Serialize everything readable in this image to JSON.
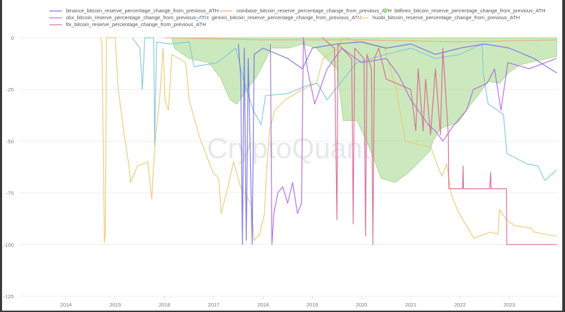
{
  "chart_data": {
    "type": "line",
    "title": "",
    "xlabel": "",
    "ylabel": "",
    "watermark": "CryptoQuant",
    "xlim": [
      2013.07,
      2024.0
    ],
    "ylim": [
      -125,
      0
    ],
    "x_ticks": [
      "2014",
      "2015",
      "2016",
      "2017",
      "2018",
      "2019",
      "2020",
      "2021",
      "2022",
      "2023"
    ],
    "y_ticks": [
      {
        "v": 0,
        "label": "0"
      },
      {
        "v": -25,
        "label": "-25"
      },
      {
        "v": -50,
        "label": "-50"
      },
      {
        "v": -75,
        "label": "-75"
      },
      {
        "v": -100,
        "label": "-100"
      },
      {
        "v": -125,
        "label": "-125"
      }
    ],
    "grid": true,
    "legend_position": "top",
    "series": [
      {
        "name": "bitfinex_bitcoin_reserve_percentage_change_from_previous_ATH",
        "color": "#9ad47e",
        "style": "area",
        "points": [
          [
            2016.15,
            0
          ],
          [
            2016.2,
            -5
          ],
          [
            2016.5,
            -10
          ],
          [
            2016.9,
            -12
          ],
          [
            2017.13,
            -19
          ],
          [
            2017.33,
            -30
          ],
          [
            2017.47,
            -32
          ],
          [
            2017.68,
            -25
          ],
          [
            2017.89,
            -18
          ],
          [
            2018.17,
            -5
          ],
          [
            2018.52,
            -5
          ],
          [
            2018.8,
            -3
          ],
          [
            2019.08,
            -5
          ],
          [
            2019.36,
            -12
          ],
          [
            2019.5,
            -15
          ],
          [
            2019.63,
            -40
          ],
          [
            2019.91,
            -40
          ],
          [
            2020.19,
            -55
          ],
          [
            2020.4,
            -68
          ],
          [
            2020.68,
            -70
          ],
          [
            2020.96,
            -65
          ],
          [
            2021.17,
            -60
          ],
          [
            2021.38,
            -55
          ],
          [
            2021.45,
            -50
          ],
          [
            2021.59,
            -44
          ],
          [
            2021.96,
            -41
          ],
          [
            2022.19,
            -33
          ],
          [
            2022.42,
            -26
          ],
          [
            2022.56,
            -21
          ],
          [
            2022.8,
            -22
          ],
          [
            2022.98,
            -17
          ],
          [
            2023.22,
            -13
          ],
          [
            2023.58,
            -11
          ],
          [
            2023.96,
            -9
          ]
        ]
      },
      {
        "name": "huobi_bitcoin_reserve_percentage_change_from_previous_ATH",
        "color": "#ecc66a",
        "points": [
          [
            2014.7,
            0
          ],
          [
            2014.73,
            -2
          ],
          [
            2014.76,
            -60
          ],
          [
            2014.78,
            -99
          ],
          [
            2014.8,
            -95
          ],
          [
            2014.82,
            0
          ],
          [
            2015.0,
            0
          ],
          [
            2015.06,
            -25
          ],
          [
            2015.17,
            -45
          ],
          [
            2015.28,
            -62
          ],
          [
            2015.31,
            -70
          ],
          [
            2015.45,
            -62
          ],
          [
            2015.66,
            -60
          ],
          [
            2015.74,
            -78
          ],
          [
            2015.81,
            -50
          ],
          [
            2015.9,
            -30
          ],
          [
            2015.97,
            -5
          ],
          [
            2016.01,
            -30
          ],
          [
            2016.08,
            -35
          ],
          [
            2016.15,
            -8
          ],
          [
            2016.43,
            -12
          ],
          [
            2016.5,
            -30
          ],
          [
            2016.71,
            -48
          ],
          [
            2016.98,
            -65
          ],
          [
            2017.1,
            -68
          ],
          [
            2017.15,
            -85
          ],
          [
            2017.26,
            -75
          ],
          [
            2017.4,
            -60
          ],
          [
            2017.54,
            -72
          ],
          [
            2017.75,
            -80
          ],
          [
            2017.82,
            -98
          ],
          [
            2017.93,
            -95
          ],
          [
            2018.03,
            -85
          ],
          [
            2018.07,
            -65
          ],
          [
            2018.13,
            -45
          ],
          [
            2018.24,
            -35
          ],
          [
            2018.45,
            -30
          ],
          [
            2018.8,
            -25
          ],
          [
            2019.08,
            -22
          ],
          [
            2019.22,
            -10
          ],
          [
            2019.5,
            -5
          ],
          [
            2019.63,
            0
          ],
          [
            2020.47,
            -5
          ],
          [
            2020.71,
            -26
          ],
          [
            2020.89,
            -50
          ],
          [
            2021.41,
            -53
          ],
          [
            2021.45,
            -56
          ],
          [
            2021.63,
            -67
          ],
          [
            2021.73,
            -61
          ],
          [
            2021.82,
            -76
          ],
          [
            2021.96,
            -84
          ],
          [
            2022.28,
            -97
          ],
          [
            2022.61,
            -94
          ],
          [
            2022.77,
            -95
          ],
          [
            2022.8,
            -83
          ],
          [
            2022.94,
            -88
          ],
          [
            2023.12,
            -91
          ],
          [
            2023.44,
            -92
          ],
          [
            2023.5,
            -94
          ],
          [
            2023.96,
            -96
          ]
        ]
      },
      {
        "name": "gemini_bitcoin_reserve_percentage_change_from_previous_ATH",
        "color": "#7cc3e0",
        "points": [
          [
            2015.35,
            0
          ],
          [
            2015.5,
            -5
          ],
          [
            2015.55,
            -25
          ],
          [
            2015.6,
            0
          ],
          [
            2015.78,
            0
          ],
          [
            2015.8,
            -52
          ],
          [
            2015.84,
            -2
          ],
          [
            2016.1,
            -3
          ],
          [
            2016.5,
            -2
          ],
          [
            2016.6,
            -14
          ],
          [
            2017.07,
            -12
          ],
          [
            2017.45,
            -5
          ],
          [
            2017.6,
            -20
          ],
          [
            2017.8,
            -35
          ],
          [
            2017.96,
            -42
          ],
          [
            2018.05,
            -28
          ],
          [
            2018.5,
            -27
          ],
          [
            2018.9,
            -23
          ],
          [
            2019.1,
            -22
          ],
          [
            2019.3,
            -30
          ],
          [
            2019.63,
            -20
          ],
          [
            2019.9,
            -12
          ],
          [
            2020.5,
            -8
          ],
          [
            2021.0,
            -5
          ],
          [
            2021.5,
            -10
          ],
          [
            2022.0,
            -8
          ],
          [
            2022.45,
            -3
          ],
          [
            2022.47,
            -17
          ],
          [
            2022.57,
            -32
          ],
          [
            2022.88,
            -37
          ],
          [
            2022.95,
            -56
          ],
          [
            2023.36,
            -61
          ],
          [
            2023.58,
            -62
          ],
          [
            2023.72,
            -69
          ],
          [
            2023.96,
            -64
          ]
        ]
      },
      {
        "name": "binance_bitcoin_reserve_percentage_change_from_previous_ATH",
        "color": "#6f6be8",
        "points": [
          [
            2017.5,
            -3
          ],
          [
            2017.55,
            -20
          ],
          [
            2017.58,
            -100
          ],
          [
            2017.62,
            -5
          ],
          [
            2017.66,
            -98
          ],
          [
            2017.7,
            -10
          ],
          [
            2017.78,
            -100
          ],
          [
            2017.82,
            -8
          ],
          [
            2018.0,
            -5
          ],
          [
            2018.5,
            -10
          ],
          [
            2018.8,
            -15
          ],
          [
            2019.0,
            -5
          ],
          [
            2019.5,
            -3
          ],
          [
            2020.0,
            -2
          ],
          [
            2020.5,
            -5
          ],
          [
            2021.0,
            -3
          ],
          [
            2021.5,
            -8
          ],
          [
            2022.0,
            -5
          ],
          [
            2022.5,
            -3
          ],
          [
            2023.0,
            -5
          ],
          [
            2023.5,
            -10
          ],
          [
            2023.96,
            -17
          ]
        ]
      },
      {
        "name": "okx_bitcoin_reserve_percentage_change_from_previous_ATH",
        "color": "#b05fe0",
        "points": [
          [
            2018.15,
            -3
          ],
          [
            2018.18,
            -100
          ],
          [
            2018.22,
            -85
          ],
          [
            2018.3,
            -75
          ],
          [
            2018.4,
            -72
          ],
          [
            2018.5,
            -80
          ],
          [
            2018.6,
            -70
          ],
          [
            2018.7,
            -85
          ],
          [
            2018.78,
            -80
          ],
          [
            2018.82,
            0
          ],
          [
            2018.9,
            -15
          ],
          [
            2019.05,
            -32
          ],
          [
            2019.3,
            -15
          ],
          [
            2019.6,
            -5
          ],
          [
            2020.0,
            -12
          ],
          [
            2020.5,
            -10
          ],
          [
            2020.75,
            -18
          ],
          [
            2021.0,
            -30
          ],
          [
            2021.35,
            -42
          ],
          [
            2021.5,
            -45
          ],
          [
            2021.65,
            -50
          ],
          [
            2021.85,
            -43
          ],
          [
            2022.13,
            -35
          ],
          [
            2022.27,
            -25
          ],
          [
            2022.55,
            -22
          ],
          [
            2022.7,
            -15
          ],
          [
            2022.83,
            -35
          ],
          [
            2022.97,
            -12
          ],
          [
            2023.4,
            -15
          ],
          [
            2023.96,
            -10
          ]
        ]
      },
      {
        "name": "ftx_bitcoin_reserve_percentage_change_from_previous_ATH",
        "color": "#d9608e",
        "points": [
          [
            2019.2,
            0
          ],
          [
            2019.45,
            -5
          ],
          [
            2019.5,
            -88
          ],
          [
            2019.52,
            -3
          ],
          [
            2019.8,
            -10
          ],
          [
            2019.83,
            -90
          ],
          [
            2019.86,
            -5
          ],
          [
            2020.05,
            -10
          ],
          [
            2020.08,
            -96
          ],
          [
            2020.11,
            -8
          ],
          [
            2020.2,
            -15
          ],
          [
            2020.23,
            -100
          ],
          [
            2020.26,
            -10
          ],
          [
            2020.35,
            -5
          ],
          [
            2020.5,
            -20
          ],
          [
            2021.0,
            -25
          ],
          [
            2021.1,
            -45
          ],
          [
            2021.15,
            -15
          ],
          [
            2021.25,
            -45
          ],
          [
            2021.3,
            -20
          ],
          [
            2021.4,
            -47
          ],
          [
            2021.5,
            -15
          ],
          [
            2021.6,
            -47
          ],
          [
            2021.65,
            -5
          ],
          [
            2021.76,
            -47
          ],
          [
            2021.77,
            -73
          ],
          [
            2022.05,
            -73
          ],
          [
            2022.06,
            -62
          ],
          [
            2022.07,
            -73
          ],
          [
            2022.6,
            -73
          ],
          [
            2022.62,
            -65
          ],
          [
            2022.63,
            -73
          ],
          [
            2022.94,
            -73
          ],
          [
            2022.95,
            -100
          ],
          [
            2023.96,
            -100
          ]
        ]
      },
      {
        "name": "coinbase_bitcoin_reserve_percentage_change_from_previous_ATH",
        "color": "#f0a87a",
        "points": [
          [
            2016.0,
            0
          ],
          [
            2018.0,
            -1
          ],
          [
            2020.0,
            -1
          ],
          [
            2022.0,
            -2
          ],
          [
            2023.96,
            -1
          ]
        ]
      }
    ]
  },
  "legend": [
    {
      "label": "binance_bitcoin_reserve_percentage_change_from_previous_ATH",
      "color": "#a9a6f0",
      "kind": "line"
    },
    {
      "label": "coinbase_bitcoin_reserve_percentage_change_from_previous_ATH",
      "color": "#f5c4a4",
      "kind": "line"
    },
    {
      "label": "bitfinex_bitcoin_reserve_percentage_change_from_previous_ATH",
      "color": "#a8dc8f",
      "kind": "dot"
    },
    {
      "label": "okx_bitcoin_reserve_percentage_change_from_previous_ATH",
      "color": "#d8a8ee",
      "kind": "line"
    },
    {
      "label": "gemini_bitcoin_reserve_percentage_change_from_previous_ATH",
      "color": "#b4def0",
      "kind": "line"
    },
    {
      "label": "huobi_bitcoin_reserve_percentage_change_from_previous_ATH",
      "color": "#f3dc9e",
      "kind": "line"
    },
    {
      "label": "ftx_bitcoin_reserve_percentage_change_from_previous_ATH",
      "color": "#eba3bd",
      "kind": "line"
    }
  ]
}
